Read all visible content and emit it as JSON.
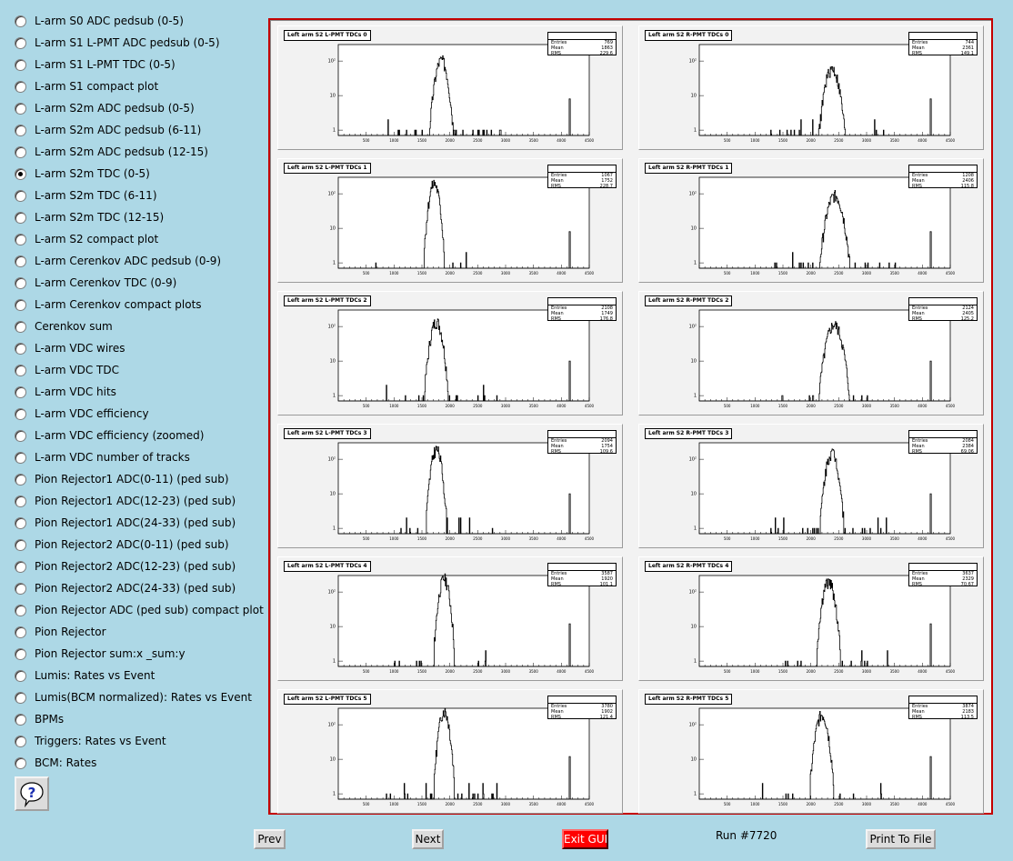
{
  "sidebar": {
    "items": [
      {
        "label": "L-arm S0 ADC pedsub (0-5)",
        "checked": false
      },
      {
        "label": "L-arm S1 L-PMT ADC pedsub (0-5)",
        "checked": false
      },
      {
        "label": "L-arm S1 L-PMT TDC (0-5)",
        "checked": false
      },
      {
        "label": "L-arm S1 compact plot",
        "checked": false
      },
      {
        "label": "L-arm S2m ADC pedsub (0-5)",
        "checked": false
      },
      {
        "label": "L-arm S2m ADC pedsub (6-11)",
        "checked": false
      },
      {
        "label": "L-arm S2m ADC pedsub (12-15)",
        "checked": false
      },
      {
        "label": "L-arm S2m TDC (0-5)",
        "checked": true
      },
      {
        "label": "L-arm S2m TDC (6-11)",
        "checked": false
      },
      {
        "label": "L-arm S2m TDC (12-15)",
        "checked": false
      },
      {
        "label": "L-arm S2 compact plot",
        "checked": false
      },
      {
        "label": "L-arm Cerenkov ADC pedsub (0-9)",
        "checked": false
      },
      {
        "label": "L-arm Cerenkov TDC (0-9)",
        "checked": false
      },
      {
        "label": "L-arm Cerenkov compact plots",
        "checked": false
      },
      {
        "label": "Cerenkov sum",
        "checked": false
      },
      {
        "label": "L-arm VDC wires",
        "checked": false
      },
      {
        "label": "L-arm VDC TDC",
        "checked": false
      },
      {
        "label": "L-arm VDC hits",
        "checked": false
      },
      {
        "label": "L-arm VDC efficiency",
        "checked": false
      },
      {
        "label": "L-arm VDC efficiency (zoomed)",
        "checked": false
      },
      {
        "label": "L-arm VDC number of tracks",
        "checked": false
      },
      {
        "label": "Pion Rejector1 ADC(0-11) (ped sub)",
        "checked": false
      },
      {
        "label": "Pion Rejector1 ADC(12-23) (ped sub)",
        "checked": false
      },
      {
        "label": "Pion Rejector1 ADC(24-33) (ped sub)",
        "checked": false
      },
      {
        "label": "Pion Rejector2 ADC(0-11) (ped sub)",
        "checked": false
      },
      {
        "label": "Pion Rejector2 ADC(12-23) (ped sub)",
        "checked": false
      },
      {
        "label": "Pion Rejector2 ADC(24-33) (ped sub)",
        "checked": false
      },
      {
        "label": "Pion Rejector ADC (ped sub) compact plot",
        "checked": false
      },
      {
        "label": "Pion Rejector",
        "checked": false
      },
      {
        "label": "Pion Rejector sum:x _sum:y",
        "checked": false
      },
      {
        "label": "Lumis: Rates vs Event",
        "checked": false
      },
      {
        "label": "Lumis(BCM normalized): Rates vs Event",
        "checked": false
      },
      {
        "label": "BPMs",
        "checked": false
      },
      {
        "label": "Triggers: Rates vs Event",
        "checked": false
      },
      {
        "label": "BCM: Rates",
        "checked": false
      }
    ],
    "help_glyph": "?",
    "help_icon": "question-mark-icon"
  },
  "bottom_bar": {
    "prev_label": "Prev",
    "next_label": "Next",
    "exit_label": "Exit GUI",
    "run_label": "Run #7720",
    "print_label": "Print To File"
  },
  "colors": {
    "background": "#add8e6",
    "canvas_border": "#c40000",
    "exit_button": "#ff0000"
  },
  "chart_data": [
    {
      "type": "histogram",
      "title": "Left arm S2 L-PMT TDCs 0",
      "stats": {
        "Entries": "769",
        "Mean": "1863",
        "RMS": "229.6"
      },
      "xlim": [
        0,
        4500
      ],
      "yscale": "log",
      "peak_center": 1850,
      "peak_width": 70,
      "peak_height": 110,
      "pulser_x": 4150,
      "pulser_height": 8
    },
    {
      "type": "histogram",
      "title": "Left arm S2 R-PMT TDCs 0",
      "stats": {
        "Entries": "744",
        "Mean": "2361",
        "RMS": "149.1"
      },
      "xlim": [
        0,
        4500
      ],
      "yscale": "log",
      "peak_center": 2380,
      "peak_width": 80,
      "peak_height": 60,
      "pulser_x": 4150,
      "pulser_height": 8
    },
    {
      "type": "histogram",
      "title": "Left arm S2 L-PMT TDCs 1",
      "stats": {
        "Entries": "1067",
        "Mean": "1752",
        "RMS": "228.7",
        "Std": "228.7"
      },
      "xlim": [
        0,
        4500
      ],
      "yscale": "log",
      "peak_center": 1720,
      "peak_width": 60,
      "peak_height": 200,
      "pulser_x": 4150,
      "pulser_height": 8
    },
    {
      "type": "histogram",
      "title": "Left arm S2 R-PMT TDCs 1",
      "stats": {
        "Entries": "1208",
        "Mean": "2406",
        "RMS": "115.8"
      },
      "xlim": [
        0,
        4500
      ],
      "yscale": "log",
      "peak_center": 2430,
      "peak_width": 90,
      "peak_height": 90,
      "pulser_x": 4150,
      "pulser_height": 8
    },
    {
      "type": "histogram",
      "title": "Left arm S2 L-PMT TDCs 2",
      "stats": {
        "Entries": "2108",
        "Mean": "1749",
        "RMS": "176.8"
      },
      "xlim": [
        0,
        4500
      ],
      "yscale": "log",
      "peak_center": 1760,
      "peak_width": 70,
      "peak_height": 140,
      "pulser_x": 4150,
      "pulser_height": 10
    },
    {
      "type": "histogram",
      "title": "Left arm S2 R-PMT TDCs 2",
      "stats": {
        "Entries": "2124",
        "Mean": "2405",
        "RMS": "125.2"
      },
      "xlim": [
        0,
        4500
      ],
      "yscale": "log",
      "peak_center": 2420,
      "peak_width": 90,
      "peak_height": 110,
      "pulser_x": 4150,
      "pulser_height": 10
    },
    {
      "type": "histogram",
      "title": "Left arm S2 L-PMT TDCs 3",
      "stats": {
        "Entries": "2094",
        "Mean": "1754",
        "RMS": "109.6"
      },
      "xlim": [
        0,
        4500
      ],
      "yscale": "log",
      "peak_center": 1760,
      "peak_width": 60,
      "peak_height": 200,
      "pulser_x": 4150,
      "pulser_height": 10
    },
    {
      "type": "histogram",
      "title": "Left arm S2 R-PMT TDCs 3",
      "stats": {
        "Entries": "2084",
        "Mean": "2384",
        "RMS": "69.06"
      },
      "xlim": [
        0,
        4500
      ],
      "yscale": "log",
      "peak_center": 2380,
      "peak_width": 70,
      "peak_height": 160,
      "pulser_x": 4150,
      "pulser_height": 10
    },
    {
      "type": "histogram",
      "title": "Left arm S2 L-PMT TDCs 4",
      "stats": {
        "Entries": "3587",
        "Mean": "1920",
        "RMS": "101.1"
      },
      "xlim": [
        0,
        4500
      ],
      "yscale": "log",
      "peak_center": 1900,
      "peak_width": 60,
      "peak_height": 250,
      "pulser_x": 4150,
      "pulser_height": 12
    },
    {
      "type": "histogram",
      "title": "Left arm S2 R-PMT TDCs 4",
      "stats": {
        "Entries": "3637",
        "Mean": "2329",
        "RMS": "70.67"
      },
      "xlim": [
        0,
        4500
      ],
      "yscale": "log",
      "peak_center": 2320,
      "peak_width": 70,
      "peak_height": 200,
      "pulser_x": 4150,
      "pulser_height": 12
    },
    {
      "type": "histogram",
      "title": "Left arm S2 L-PMT TDCs 5",
      "stats": {
        "Entries": "3780",
        "Mean": "1902",
        "RMS": "121.4"
      },
      "xlim": [
        0,
        4500
      ],
      "yscale": "log",
      "peak_center": 1900,
      "peak_width": 60,
      "peak_height": 250,
      "pulser_x": 4150,
      "pulser_height": 12
    },
    {
      "type": "histogram",
      "title": "Left arm S2 R-PMT TDCs 5",
      "stats": {
        "Entries": "3874",
        "Mean": "2183",
        "RMS": "113.5"
      },
      "xlim": [
        0,
        4500
      ],
      "yscale": "log",
      "peak_center": 2200,
      "peak_width": 70,
      "peak_height": 200,
      "pulser_x": 4150,
      "pulser_height": 12
    }
  ],
  "axis": {
    "x_ticks": [
      "500",
      "1000",
      "1500",
      "2000",
      "2500",
      "3000",
      "3500",
      "4000",
      "4500"
    ],
    "y_ticks": [
      "1",
      "10",
      "10²"
    ]
  }
}
